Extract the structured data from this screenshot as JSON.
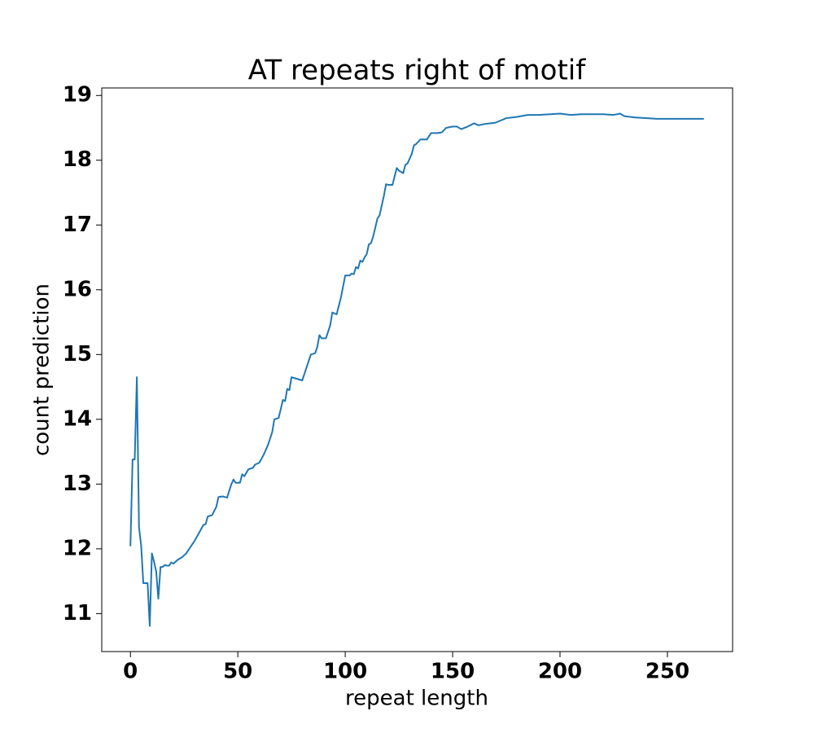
{
  "chart_data": {
    "type": "line",
    "title": "AT repeats right of motif",
    "xlabel": "repeat length",
    "ylabel": "count prediction",
    "x": [
      0,
      1,
      2,
      3,
      4,
      5,
      6,
      7,
      8,
      9,
      10,
      11,
      12,
      13,
      14,
      15,
      16,
      17,
      18,
      19,
      20,
      21,
      22,
      24,
      26,
      28,
      30,
      32,
      34,
      35,
      36,
      38,
      40,
      41,
      43,
      45,
      47,
      48,
      49,
      51,
      52,
      53,
      55,
      57,
      58,
      60,
      62,
      64,
      66,
      67,
      69,
      71,
      72,
      73,
      74,
      75,
      77,
      80,
      82,
      84,
      86,
      87,
      88,
      89,
      91,
      93,
      94,
      96,
      97,
      98,
      100,
      102,
      103,
      104,
      105,
      106,
      107,
      108,
      109,
      110,
      111,
      112,
      113,
      115,
      116,
      118,
      119,
      120,
      122,
      124,
      125,
      127,
      128,
      129,
      131,
      132,
      133,
      135,
      138,
      140,
      143,
      145,
      147,
      150,
      152,
      154,
      157,
      160,
      162,
      165,
      170,
      175,
      180,
      185,
      190,
      200,
      205,
      210,
      220,
      225,
      228,
      230,
      235,
      240,
      245,
      255,
      267
    ],
    "values": [
      12.04,
      13.38,
      13.38,
      14.65,
      12.33,
      12.05,
      11.47,
      11.47,
      11.47,
      10.81,
      11.93,
      11.8,
      11.65,
      11.23,
      11.72,
      11.72,
      11.75,
      11.74,
      11.74,
      11.79,
      11.77,
      11.8,
      11.83,
      11.87,
      11.93,
      12.03,
      12.13,
      12.25,
      12.37,
      12.38,
      12.5,
      12.52,
      12.65,
      12.8,
      12.81,
      12.79,
      13.0,
      13.07,
      13.02,
      13.02,
      13.15,
      13.12,
      13.23,
      13.25,
      13.3,
      13.33,
      13.45,
      13.6,
      13.8,
      14.0,
      14.02,
      14.3,
      14.28,
      14.47,
      14.45,
      14.65,
      14.63,
      14.6,
      14.8,
      15.0,
      15.02,
      15.12,
      15.3,
      15.25,
      15.25,
      15.45,
      15.65,
      15.62,
      15.75,
      15.88,
      16.22,
      16.22,
      16.25,
      16.24,
      16.35,
      16.33,
      16.45,
      16.43,
      16.5,
      16.55,
      16.7,
      16.72,
      16.82,
      17.1,
      17.15,
      17.45,
      17.63,
      17.62,
      17.62,
      17.88,
      17.84,
      17.8,
      17.93,
      17.95,
      18.1,
      18.23,
      18.25,
      18.32,
      18.32,
      18.42,
      18.42,
      18.43,
      18.5,
      18.52,
      18.52,
      18.48,
      18.52,
      18.57,
      18.54,
      18.56,
      18.58,
      18.65,
      18.67,
      18.7,
      18.7,
      18.72,
      18.7,
      18.71,
      18.71,
      18.7,
      18.72,
      18.68,
      18.66,
      18.65,
      18.64,
      18.64,
      18.64
    ],
    "color": "#1f77b4",
    "xlim": [
      -13.35,
      280.35
    ],
    "ylim": [
      10.414,
      19.116
    ],
    "xticks": [
      0,
      50,
      100,
      150,
      200,
      250
    ],
    "yticks": [
      11,
      12,
      13,
      14,
      15,
      16,
      17,
      18,
      19
    ]
  }
}
